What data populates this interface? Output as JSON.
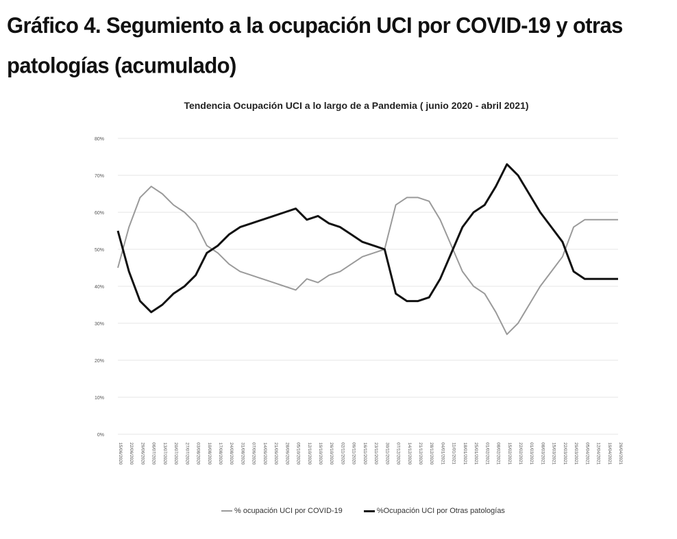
{
  "page": {
    "title": "Gráfico 4. Segumiento a la ocupación UCI por COVID-19 y otras patologías (acumulado)"
  },
  "chart_data": {
    "type": "line",
    "title": "Tendencia Ocupación UCI a lo largo de a Pandemia ( junio 2020 - abril 2021)",
    "xlabel": "",
    "ylabel": "",
    "ylim": [
      0,
      80
    ],
    "yticks": [
      "0%",
      "10%",
      "20%",
      "30%",
      "40%",
      "50%",
      "60%",
      "70%",
      "80%"
    ],
    "grid": true,
    "legend_position": "bottom",
    "x": [
      "15/06/2020",
      "22/06/2020",
      "29/06/2020",
      "06/07/2020",
      "13/07/2020",
      "20/07/2020",
      "27/07/2020",
      "03/08/2020",
      "10/08/2020",
      "17/08/2020",
      "24/08/2020",
      "31/08/2020",
      "07/09/2020",
      "14/09/2020",
      "21/09/2020",
      "28/09/2020",
      "05/10/2020",
      "12/10/2020",
      "19/10/2020",
      "26/10/2020",
      "02/11/2020",
      "09/11/2020",
      "16/11/2020",
      "23/11/2020",
      "30/11/2020",
      "07/12/2020",
      "14/12/2020",
      "21/12/2020",
      "28/12/2020",
      "04/01/2021",
      "11/01/2021",
      "18/01/2021",
      "25/01/2021",
      "01/02/2021",
      "08/02/2021",
      "15/02/2021",
      "22/02/2021",
      "01/03/2021",
      "08/03/2021",
      "15/03/2021",
      "22/03/2021",
      "29/03/2021",
      "05/04/2021",
      "12/04/2021",
      "19/04/2021",
      "26/04/2021"
    ],
    "series": [
      {
        "name": "% ocupación UCI por COVID-19",
        "color": "#9a9a9a",
        "values": [
          45,
          56,
          64,
          67,
          65,
          62,
          60,
          57,
          51,
          49,
          46,
          44,
          43,
          42,
          41,
          40,
          39,
          42,
          41,
          43,
          44,
          46,
          48,
          49,
          50,
          62,
          64,
          64,
          63,
          58,
          51,
          44,
          40,
          38,
          33,
          27,
          30,
          35,
          40,
          44,
          48,
          56,
          58,
          58,
          58,
          58
        ]
      },
      {
        "name": "%Ocupación UCI por Otras patologías",
        "color": "#111111",
        "values": [
          55,
          44,
          36,
          33,
          35,
          38,
          40,
          43,
          49,
          51,
          54,
          56,
          57,
          58,
          59,
          60,
          61,
          58,
          59,
          57,
          56,
          54,
          52,
          51,
          50,
          38,
          36,
          36,
          37,
          42,
          49,
          56,
          60,
          62,
          67,
          73,
          70,
          65,
          60,
          56,
          52,
          44,
          42,
          42,
          42,
          42
        ]
      }
    ]
  }
}
